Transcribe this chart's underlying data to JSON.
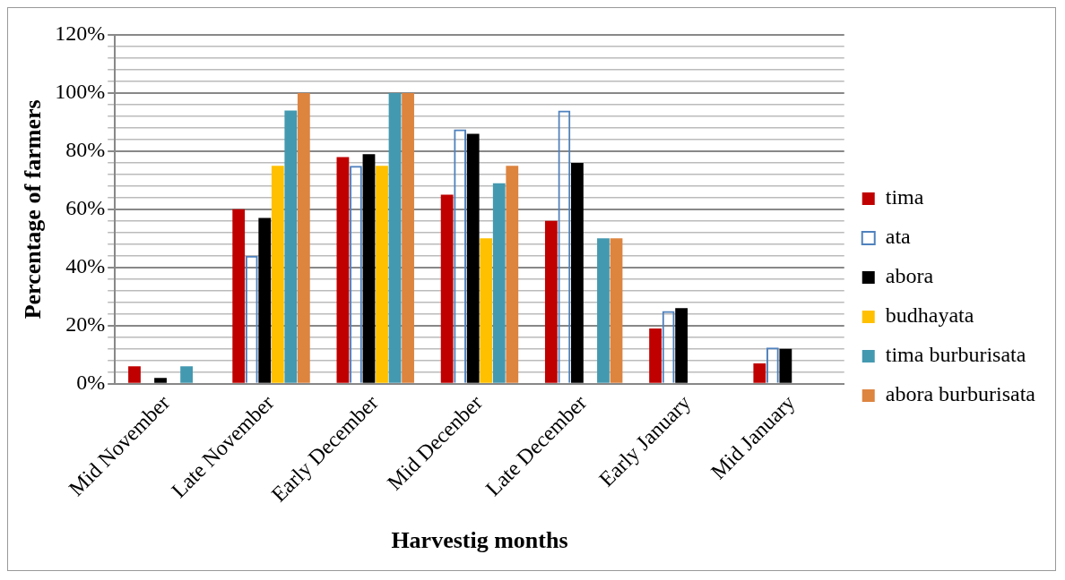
{
  "chart_data": {
    "type": "bar",
    "categories": [
      "Mid November",
      "Late November",
      "Early December",
      "Mid Decenber",
      "Late December",
      "Early January",
      "Mid January"
    ],
    "series": [
      {
        "name": "tima",
        "color": "#c00000",
        "values": [
          6,
          60,
          78,
          65,
          56,
          19,
          7
        ]
      },
      {
        "name": "ata",
        "color": "#4f81bd",
        "values": [
          null,
          44,
          75,
          87.5,
          94,
          25,
          12.5
        ]
      },
      {
        "name": "abora",
        "color": "#000000",
        "values": [
          2,
          57,
          79,
          86,
          76,
          26,
          12
        ]
      },
      {
        "name": "budhayata",
        "color": "#ffc000",
        "values": [
          null,
          75,
          75,
          50,
          null,
          null,
          null
        ]
      },
      {
        "name": "tima burburisata",
        "color": "#4399b0",
        "values": [
          6,
          94,
          100,
          69,
          50,
          null,
          null
        ]
      },
      {
        "name": "abora burburisata",
        "color": "#dd843f",
        "values": [
          null,
          100,
          100,
          75,
          50,
          null,
          null
        ]
      }
    ],
    "xlabel": "Harvestig months",
    "ylabel": "Percentage of farmers",
    "ylim": [
      0,
      120
    ],
    "yticks": [
      {
        "value": 0,
        "label": "0%"
      },
      {
        "value": 4,
        "label": null
      },
      {
        "value": 8,
        "label": null
      },
      {
        "value": 12,
        "label": null
      },
      {
        "value": 16,
        "label": null
      },
      {
        "value": 20,
        "label": "20%"
      },
      {
        "value": 24,
        "label": null
      },
      {
        "value": 28,
        "label": null
      },
      {
        "value": 32,
        "label": null
      },
      {
        "value": 36,
        "label": null
      },
      {
        "value": 40,
        "label": "40%"
      },
      {
        "value": 44,
        "label": null
      },
      {
        "value": 48,
        "label": null
      },
      {
        "value": 52,
        "label": null
      },
      {
        "value": 56,
        "label": null
      },
      {
        "value": 60,
        "label": "60%"
      },
      {
        "value": 64,
        "label": null
      },
      {
        "value": 68,
        "label": null
      },
      {
        "value": 72,
        "label": null
      },
      {
        "value": 76,
        "label": null
      },
      {
        "value": 80,
        "label": "80%"
      },
      {
        "value": 84,
        "label": null
      },
      {
        "value": 88,
        "label": null
      },
      {
        "value": 92,
        "label": null
      },
      {
        "value": 96,
        "label": null
      },
      {
        "value": 100,
        "label": "100%"
      },
      {
        "value": 104,
        "label": null
      },
      {
        "value": 108,
        "label": null
      },
      {
        "value": 112,
        "label": null
      },
      {
        "value": 116,
        "label": null
      },
      {
        "value": 120,
        "label": "120%"
      }
    ],
    "grid": "y",
    "legend": "right"
  }
}
